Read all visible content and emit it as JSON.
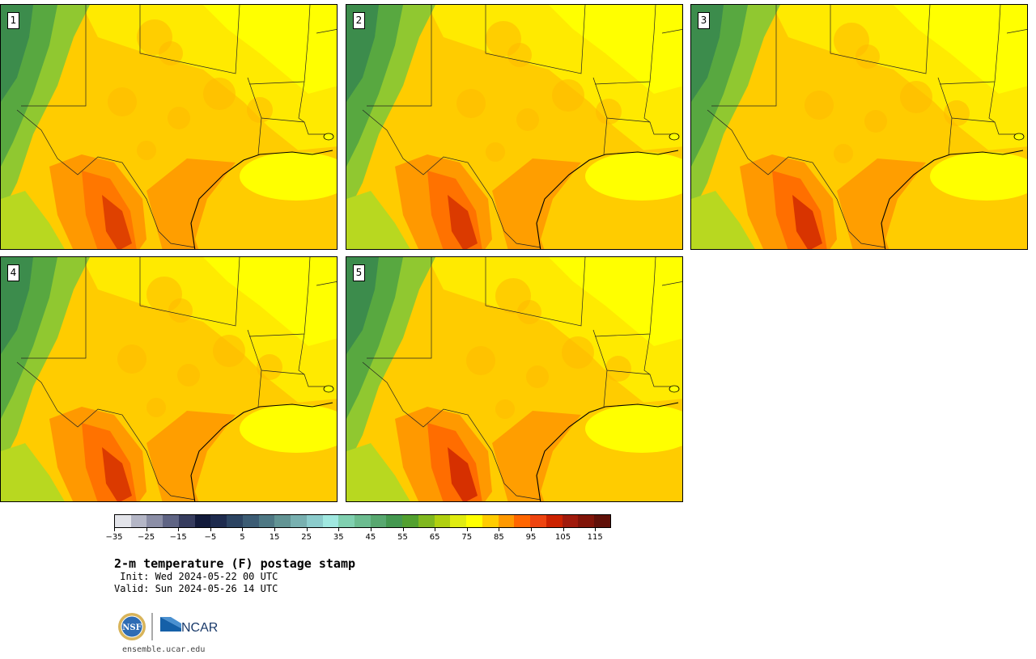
{
  "panels": [
    {
      "label": "1",
      "variant": 0
    },
    {
      "label": "2",
      "variant": 1
    },
    {
      "label": "3",
      "variant": 2
    },
    {
      "label": "4",
      "variant": 3
    },
    {
      "label": "5",
      "variant": 4
    }
  ],
  "colorbar": {
    "colors": [
      "#e3e4ea",
      "#b4b6c6",
      "#8b8ea6",
      "#5f6484",
      "#363c5e",
      "#121a3a",
      "#1e2b4e",
      "#2c4462",
      "#3c5c74",
      "#4e7884",
      "#629494",
      "#78b0b0",
      "#8ccccc",
      "#a0e8e0",
      "#80d0b0",
      "#6cbc90",
      "#58a870",
      "#449850",
      "#52a030",
      "#80b820",
      "#b0d010",
      "#e0ec10",
      "#ffff00",
      "#ffcc00",
      "#ff9900",
      "#ff6600",
      "#ee4410",
      "#cc2200",
      "#a01a0c",
      "#801408",
      "#601008"
    ],
    "tick_labels": [
      "−35",
      "−25",
      "−15",
      "−5",
      "5",
      "15",
      "25",
      "35",
      "45",
      "55",
      "65",
      "75",
      "85",
      "95",
      "105",
      "115"
    ],
    "min": -35,
    "max": 120
  },
  "title": "2-m temperature (F) postage stamp",
  "init_line": " Init: Wed 2024-05-22 00 UTC",
  "valid_line": "Valid: Sun 2024-05-26 14 UTC",
  "logos": {
    "nsf": "NSF",
    "ncar": "NCAR"
  },
  "footer_url": "ensemble.ucar.edu"
}
